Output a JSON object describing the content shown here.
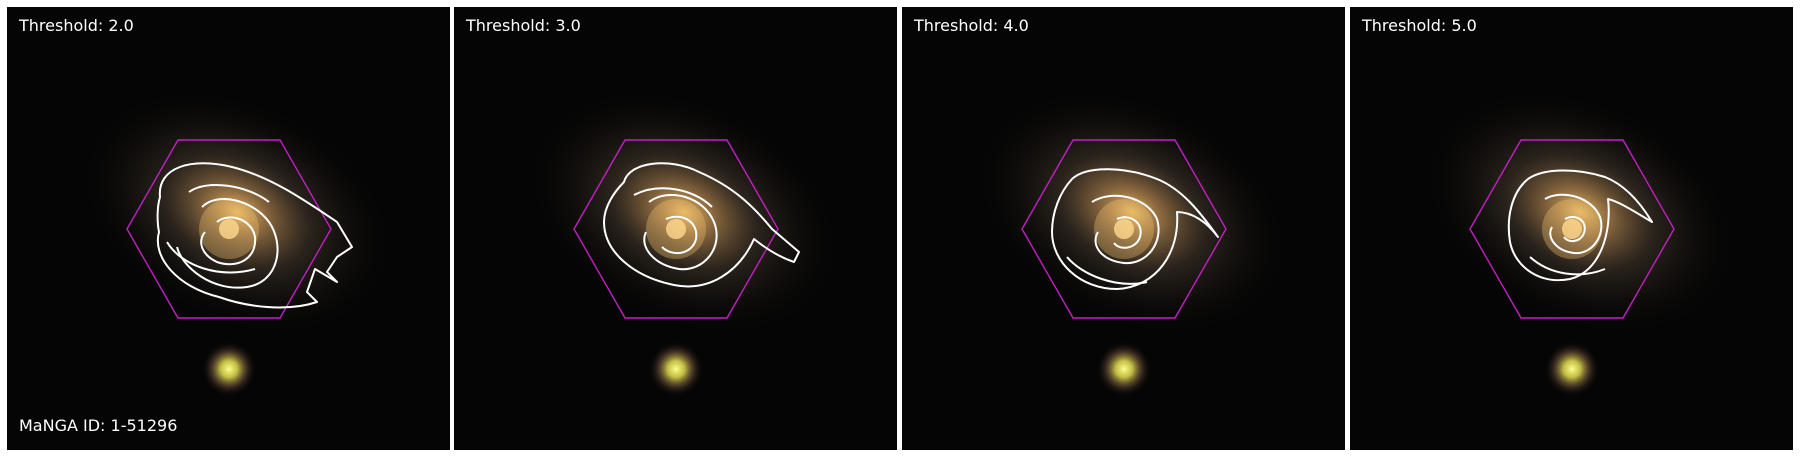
{
  "panels": [
    {
      "label": "Threshold: 2.0"
    },
    {
      "label": "Threshold: 3.0"
    },
    {
      "label": "Threshold: 4.0"
    },
    {
      "label": "Threshold: 5.0"
    }
  ],
  "galaxy_id_label": "MaNGA ID: 1-51296",
  "colors": {
    "background": "#050505",
    "hexagon_outline": "#c020c0",
    "contour": "#ffffff",
    "galaxy_core": "#f2c46a",
    "companion_star": "#f2f25a"
  }
}
